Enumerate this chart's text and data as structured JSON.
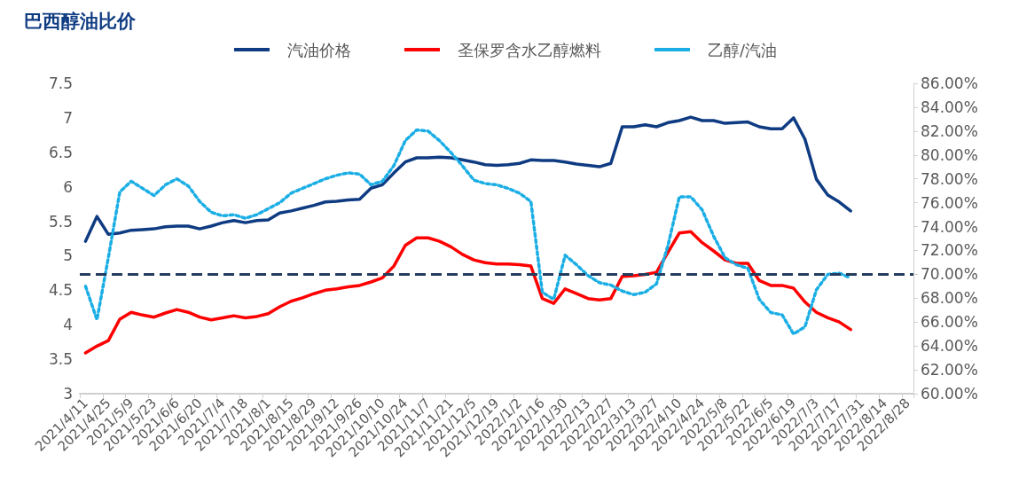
{
  "chart_data": {
    "type": "line",
    "title": "巴西醇油比价",
    "categories": [
      "2021/4/11",
      null,
      "2021/4/25",
      null,
      "2021/5/9",
      null,
      "2021/5/23",
      null,
      "2021/6/6",
      null,
      "2021/6/20",
      null,
      "2021/7/4",
      null,
      "2021/7/18",
      null,
      "2021/8/1",
      null,
      "2021/8/15",
      null,
      "2021/8/29",
      null,
      "2021/9/12",
      null,
      "2021/9/26",
      null,
      "2021/10/10",
      null,
      "2021/10/24",
      null,
      "2021/11/7",
      null,
      "2021/11/21",
      null,
      "2021/12/5",
      null,
      "2021/12/19",
      null,
      "2022/1/2",
      null,
      "2022/1/16",
      null,
      "2022/1/30",
      null,
      "2022/2/13",
      null,
      "2022/2/27",
      null,
      "2022/3/13",
      null,
      "2022/3/27",
      null,
      "2022/4/10",
      null,
      "2022/4/24",
      null,
      "2022/5/8",
      null,
      "2022/5/22",
      null,
      "2022/6/5",
      null,
      "2022/6/19",
      null,
      "2022/7/3",
      null,
      "2022/7/17",
      null,
      "2022/7/31",
      null,
      "2022/8/14",
      null,
      "2022/8/28"
    ],
    "series": [
      {
        "name": "汽油价格",
        "color": "#0e3b82",
        "line_style": "solid",
        "values": [
          5.21,
          5.57,
          5.31,
          5.33,
          5.37,
          5.38,
          5.39,
          5.42,
          5.43,
          5.43,
          5.39,
          5.43,
          5.48,
          5.51,
          5.48,
          5.51,
          5.52,
          5.62,
          5.65,
          5.69,
          5.73,
          5.78,
          5.79,
          5.81,
          5.82,
          5.98,
          6.03,
          6.2,
          6.36,
          6.42,
          6.42,
          6.43,
          6.42,
          6.39,
          6.36,
          6.32,
          6.31,
          6.32,
          6.34,
          6.39,
          6.38,
          6.38,
          6.36,
          6.33,
          6.31,
          6.29,
          6.34,
          6.87,
          6.87,
          6.9,
          6.87,
          6.93,
          6.96,
          7.01,
          6.96,
          6.96,
          6.92,
          6.93,
          6.94,
          6.87,
          6.84,
          6.84,
          7.0,
          6.69,
          6.11,
          5.88,
          5.78,
          5.65,
          null,
          null,
          null,
          null,
          null
        ]
      },
      {
        "name": "圣保罗含水乙醇燃料",
        "color": "#ff0000",
        "line_style": "solid",
        "values": [
          3.59,
          3.69,
          3.77,
          4.08,
          4.18,
          4.14,
          4.11,
          4.17,
          4.22,
          4.18,
          4.11,
          4.07,
          4.1,
          4.13,
          4.1,
          4.12,
          4.16,
          4.26,
          4.34,
          4.39,
          4.45,
          4.5,
          4.52,
          4.55,
          4.57,
          4.62,
          4.68,
          4.85,
          5.15,
          5.26,
          5.26,
          5.21,
          5.13,
          5.02,
          4.94,
          4.9,
          4.88,
          4.88,
          4.87,
          4.85,
          4.38,
          4.31,
          4.52,
          4.45,
          4.38,
          4.36,
          4.38,
          4.7,
          4.71,
          4.73,
          4.76,
          5.05,
          5.33,
          5.35,
          5.19,
          5.07,
          4.94,
          4.89,
          4.89,
          4.64,
          4.57,
          4.57,
          4.53,
          4.33,
          4.18,
          4.1,
          4.04,
          3.93,
          null,
          null,
          null,
          null,
          null
        ]
      },
      {
        "name": "乙醇/汽油",
        "color": "#1aaee5",
        "line_style": "dotted",
        "axis": "y2",
        "values": [
          69.0,
          66.2,
          71.4,
          76.9,
          77.8,
          77.2,
          76.6,
          77.5,
          78.0,
          77.4,
          76.1,
          75.2,
          74.9,
          75.0,
          74.7,
          75.0,
          75.5,
          76.0,
          76.8,
          77.2,
          77.6,
          78.0,
          78.3,
          78.5,
          78.4,
          77.5,
          77.8,
          79.1,
          81.2,
          82.1,
          82.0,
          81.2,
          80.2,
          79.1,
          77.9,
          77.6,
          77.5,
          77.2,
          76.8,
          76.1,
          68.5,
          67.9,
          71.6,
          70.8,
          69.9,
          69.3,
          69.1,
          68.6,
          68.3,
          68.5,
          69.2,
          72.4,
          76.5,
          76.5,
          75.4,
          73.2,
          71.4,
          70.8,
          70.5,
          67.9,
          66.8,
          66.6,
          65.0,
          65.6,
          68.7,
          70.0,
          70.1,
          69.7,
          null,
          null,
          null,
          null,
          null
        ]
      }
    ],
    "ylim": [
      3,
      7.5
    ],
    "yticks": [
      3,
      3.5,
      4,
      4.5,
      5,
      5.5,
      6,
      6.5,
      7,
      7.5
    ],
    "y2lim": [
      60,
      86
    ],
    "y2ticks": [
      {
        "value": 60,
        "label": "60.00%"
      },
      {
        "value": 62,
        "label": "62.00%"
      },
      {
        "value": 64,
        "label": "64.00%"
      },
      {
        "value": 66,
        "label": "66.00%"
      },
      {
        "value": 68,
        "label": "68.00%"
      },
      {
        "value": 70,
        "label": "70.00%"
      },
      {
        "value": 72,
        "label": "72.00%"
      },
      {
        "value": 74,
        "label": "74.00%"
      },
      {
        "value": 76,
        "label": "76.00%"
      },
      {
        "value": 78,
        "label": "78.00%"
      },
      {
        "value": 80,
        "label": "80.00%"
      },
      {
        "value": 82,
        "label": "82.00%"
      },
      {
        "value": 84,
        "label": "84.00%"
      },
      {
        "value": 86,
        "label": "86.00%"
      }
    ],
    "ref_lines": [
      {
        "axis": "y2",
        "value": 70,
        "color": "#243c5e",
        "line_style": "dashed"
      }
    ],
    "legend": "top",
    "grid": false,
    "marker": "none"
  }
}
